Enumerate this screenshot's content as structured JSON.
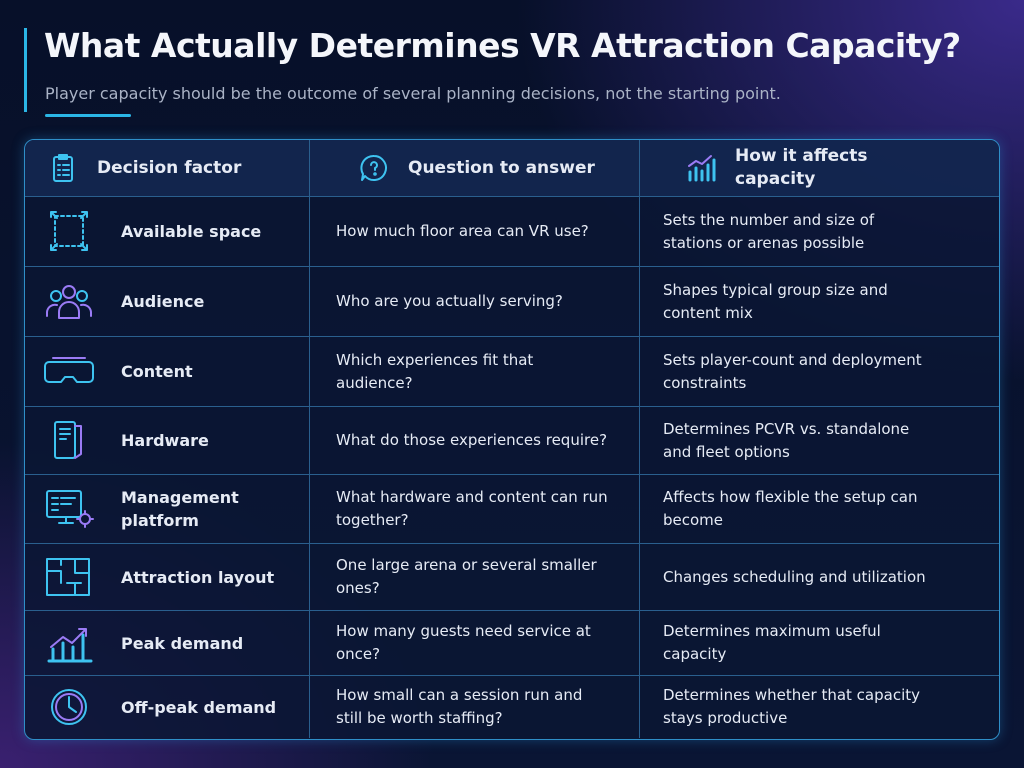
{
  "header": {
    "title": "What Actually Determines VR Attraction Capacity?",
    "subtitle": "Player capacity should be the outcome of several planning decisions, not the starting point."
  },
  "table": {
    "headers": [
      "Decision factor",
      "Question to answer",
      "How it affects capacity"
    ],
    "rows": [
      [
        "Available space",
        "How much floor area can VR use?",
        "Sets the number and size of stations or arenas possible"
      ],
      [
        "Audience",
        "Who are you actually serving?",
        "Shapes typical group size and content mix"
      ],
      [
        "Content",
        "Which experiences fit that audience?",
        "Sets player-count and deployment constraints"
      ],
      [
        "Hardware",
        "What do those experiences require?",
        "Determines PCVR vs. standalone and fleet options"
      ],
      [
        "Management platform",
        "What hardware and content can run together?",
        "Affects how flexible the setup can become"
      ],
      [
        "Attraction layout",
        "One large arena or several smaller ones?",
        "Changes scheduling and utilization"
      ],
      [
        "Peak demand",
        "How many guests need service at once?",
        "Determines maximum useful capacity"
      ],
      [
        "Off-peak demand",
        "How small can a session run and still be worth staffing?",
        "Determines whether that capacity stays productive"
      ]
    ]
  }
}
